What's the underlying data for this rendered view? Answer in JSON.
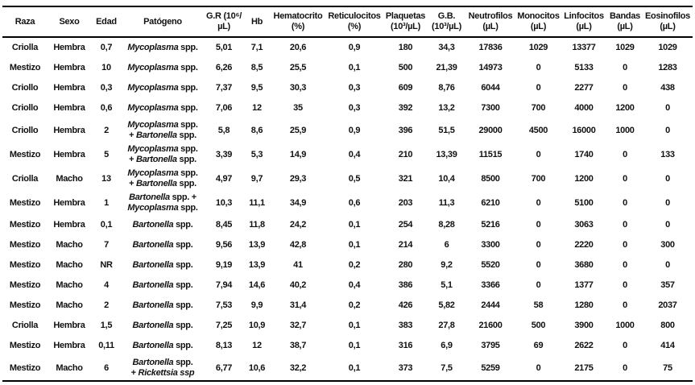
{
  "table": {
    "columns": [
      {
        "id": "raza",
        "line1": "Raza",
        "line2": ""
      },
      {
        "id": "sexo",
        "line1": "Sexo",
        "line2": ""
      },
      {
        "id": "edad",
        "line1": "Edad",
        "line2": ""
      },
      {
        "id": "patogeno",
        "line1": "Patógeno",
        "line2": ""
      },
      {
        "id": "gr",
        "line1": "G.R (10⁶/",
        "line2": "µL)"
      },
      {
        "id": "hb",
        "line1": "Hb",
        "line2": ""
      },
      {
        "id": "hematocrito",
        "line1": "Hematocrito",
        "line2": "(%)"
      },
      {
        "id": "reticulocitos",
        "line1": "Reticulocitos",
        "line2": "(%)"
      },
      {
        "id": "plaquetas",
        "line1": "Plaquetas",
        "line2": "(10³/µL)"
      },
      {
        "id": "gb",
        "line1": "G.B.",
        "line2": "(10³/µL)"
      },
      {
        "id": "neutrofilos",
        "line1": "Neutrofilos",
        "line2": "(µL)"
      },
      {
        "id": "monocitos",
        "line1": "Monocitos",
        "line2": "(µL)"
      },
      {
        "id": "linfocitos",
        "line1": "Linfocitos",
        "line2": "(µL)"
      },
      {
        "id": "bandas",
        "line1": "Bandas",
        "line2": "(µL)"
      },
      {
        "id": "eosinofilos",
        "line1": "Eosinofilos",
        "line2": "(µL)"
      }
    ],
    "rows": [
      [
        "Criolla",
        "Hembra",
        "0,7",
        [
          [
            {
              "t": "Mycoplasma",
              "i": true
            },
            {
              "t": " spp.",
              "i": false
            }
          ]
        ],
        "5,01",
        "7,1",
        "20,6",
        "0,9",
        "180",
        "34,3",
        "17836",
        "1029",
        "13377",
        "1029",
        "1029"
      ],
      [
        "Mestizo",
        "Hembra",
        "10",
        [
          [
            {
              "t": "Mycoplasma",
              "i": true
            },
            {
              "t": " spp.",
              "i": false
            }
          ]
        ],
        "6,26",
        "8,5",
        "25,5",
        "0,1",
        "500",
        "21,39",
        "14973",
        "0",
        "5133",
        "0",
        "1283"
      ],
      [
        "Criollo",
        "Hembra",
        "0,3",
        [
          [
            {
              "t": "Mycoplasma",
              "i": true
            },
            {
              "t": " spp.",
              "i": false
            }
          ]
        ],
        "7,37",
        "9,5",
        "30,3",
        "0,3",
        "609",
        "8,76",
        "6044",
        "0",
        "2277",
        "0",
        "438"
      ],
      [
        "Criollo",
        "Hembra",
        "0,6",
        [
          [
            {
              "t": "Mycoplasma",
              "i": true
            },
            {
              "t": " spp.",
              "i": false
            }
          ]
        ],
        "7,06",
        "12",
        "35",
        "0,3",
        "392",
        "13,2",
        "7300",
        "700",
        "4000",
        "1200",
        "0"
      ],
      [
        "Criollo",
        "Hembra",
        "2",
        [
          [
            {
              "t": "Mycoplasma",
              "i": true
            },
            {
              "t": " spp.",
              "i": false
            }
          ],
          [
            {
              "t": "+ ",
              "i": false
            },
            {
              "t": "Bartonella",
              "i": true
            },
            {
              "t": " spp.",
              "i": false
            }
          ]
        ],
        "5,8",
        "8,6",
        "25,9",
        "0,9",
        "396",
        "51,5",
        "29000",
        "4500",
        "16000",
        "1000",
        "0"
      ],
      [
        "Mestizo",
        "Hembra",
        "5",
        [
          [
            {
              "t": "Mycoplasma",
              "i": true
            },
            {
              "t": " spp.",
              "i": false
            }
          ],
          [
            {
              "t": "+ ",
              "i": false
            },
            {
              "t": "Bartonella",
              "i": true
            },
            {
              "t": " spp.",
              "i": false
            }
          ]
        ],
        "3,39",
        "5,3",
        "14,9",
        "0,4",
        "210",
        "13,39",
        "11515",
        "0",
        "1740",
        "0",
        "133"
      ],
      [
        "Criolla",
        "Macho",
        "13",
        [
          [
            {
              "t": "Mycoplasma",
              "i": true
            },
            {
              "t": " spp.",
              "i": false
            }
          ],
          [
            {
              "t": "+ ",
              "i": false
            },
            {
              "t": "Bartonella",
              "i": true
            },
            {
              "t": " spp.",
              "i": false
            }
          ]
        ],
        "4,97",
        "9,7",
        "29,3",
        "0,5",
        "321",
        "10,4",
        "8500",
        "700",
        "1200",
        "0",
        "0"
      ],
      [
        "Mestizo",
        "Hembra",
        "1",
        [
          [
            {
              "t": "Bartonella",
              "i": true
            },
            {
              "t": " spp. +",
              "i": false
            }
          ],
          [
            {
              "t": "Mycoplasma",
              "i": true
            },
            {
              "t": " spp.",
              "i": false
            }
          ]
        ],
        "10,3",
        "11,1",
        "34,9",
        "0,6",
        "203",
        "11,3",
        "6210",
        "0",
        "5100",
        "0",
        "0"
      ],
      [
        "Mestizo",
        "Hembra",
        "0,1",
        [
          [
            {
              "t": "Bartonella",
              "i": true
            },
            {
              "t": " spp.",
              "i": false
            }
          ]
        ],
        "8,45",
        "11,8",
        "24,2",
        "0,1",
        "254",
        "8,28",
        "5216",
        "0",
        "3063",
        "0",
        "0"
      ],
      [
        "Mestizo",
        "Macho",
        "7",
        [
          [
            {
              "t": "Bartonella",
              "i": true
            },
            {
              "t": " spp.",
              "i": false
            }
          ]
        ],
        "9,56",
        "13,9",
        "42,8",
        "0,1",
        "214",
        "6",
        "3300",
        "0",
        "2220",
        "0",
        "300"
      ],
      [
        "Mestizo",
        "Macho",
        "NR",
        [
          [
            {
              "t": "Bartonella",
              "i": true
            },
            {
              "t": " spp.",
              "i": false
            }
          ]
        ],
        "9,19",
        "13,9",
        "41",
        "0,2",
        "280",
        "9,2",
        "5520",
        "0",
        "3680",
        "0",
        "0"
      ],
      [
        "Mestizo",
        "Macho",
        "4",
        [
          [
            {
              "t": "Bartonella",
              "i": true
            },
            {
              "t": " spp.",
              "i": false
            }
          ]
        ],
        "7,94",
        "14,6",
        "40,2",
        "0,4",
        "386",
        "5,1",
        "3366",
        "0",
        "1377",
        "0",
        "357"
      ],
      [
        "Mestizo",
        "Macho",
        "2",
        [
          [
            {
              "t": "Bartonella",
              "i": true
            },
            {
              "t": " spp.",
              "i": false
            }
          ]
        ],
        "7,53",
        "9,9",
        "31,4",
        "0,2",
        "426",
        "5,82",
        "2444",
        "58",
        "1280",
        "0",
        "2037"
      ],
      [
        "Criolla",
        "Hembra",
        "1,5",
        [
          [
            {
              "t": "Bartonella",
              "i": true
            },
            {
              "t": " spp.",
              "i": false
            }
          ]
        ],
        "7,25",
        "10,9",
        "32,7",
        "0,1",
        "383",
        "27,8",
        "21600",
        "500",
        "3900",
        "1000",
        "800"
      ],
      [
        "Mestizo",
        "Hembra",
        "0,11",
        [
          [
            {
              "t": "Bartonella",
              "i": true
            },
            {
              "t": " spp.",
              "i": false
            }
          ]
        ],
        "8,13",
        "12",
        "38,7",
        "0,1",
        "316",
        "6,9",
        "3795",
        "69",
        "2622",
        "0",
        "414"
      ],
      [
        "Mestizo",
        "Macho",
        "6",
        [
          [
            {
              "t": "Bartonella",
              "i": true
            },
            {
              "t": " spp.",
              "i": false
            }
          ],
          [
            {
              "t": "+ ",
              "i": false
            },
            {
              "t": "Rickettsia ssp",
              "i": true
            }
          ]
        ],
        "6,77",
        "10,6",
        "32,2",
        "0,1",
        "373",
        "7,5",
        "5259",
        "0",
        "2175",
        "0",
        "75"
      ]
    ]
  }
}
